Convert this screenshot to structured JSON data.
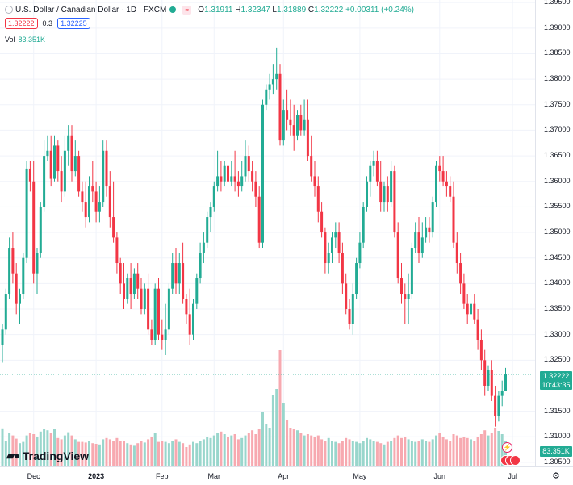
{
  "header": {
    "symbol": "U.S. Dollar / Canadian Dollar · 1D · FXCM",
    "open_label": "O",
    "open": "1.31911",
    "high_label": "H",
    "high": "1.32347",
    "low_label": "L",
    "low": "1.31889",
    "close_label": "C",
    "close": "1.32222",
    "change": "+0.00311 (+0.24%)"
  },
  "bidask": {
    "sell": "1.32222",
    "spread": "0.3",
    "buy": "1.32225"
  },
  "volume": {
    "label": "Vol",
    "value": "83.351K"
  },
  "last_price_tag": {
    "price": "1.32222",
    "countdown": "10:43:35"
  },
  "volume_tag": "83.351K",
  "logo_text": "TradingView",
  "colors": {
    "up": "#22ab94",
    "down": "#f23645",
    "up_vol": "#99d6cc",
    "down_vol": "#f7a9b0"
  },
  "chart_data": {
    "type": "candlestick",
    "title": "U.S. Dollar / Canadian Dollar · 1D · FXCM",
    "ylim": [
      1.3042,
      1.3955
    ],
    "y_ticks": [
      "1.39500",
      "1.39000",
      "1.38500",
      "1.38000",
      "1.37500",
      "1.37000",
      "1.36500",
      "1.36000",
      "1.35500",
      "1.35000",
      "1.34500",
      "1.34000",
      "1.33500",
      "1.33000",
      "1.32500",
      "1.31500",
      "1.31000",
      "1.30500"
    ],
    "x_ticks": [
      "Dec",
      "2023",
      "Feb",
      "Mar",
      "Apr",
      "May",
      "Jun",
      "Jul"
    ],
    "x_tick_bold": [
      false,
      true,
      false,
      false,
      false,
      false,
      false,
      false
    ],
    "last_price": 1.32222,
    "volume_max": 180,
    "candles": [
      [
        1.328,
        1.332,
        1.3245,
        1.331,
        59
      ],
      [
        1.331,
        1.339,
        1.33,
        1.338,
        40
      ],
      [
        1.338,
        1.349,
        1.337,
        1.347,
        52
      ],
      [
        1.347,
        1.35,
        1.34,
        1.342,
        48
      ],
      [
        1.342,
        1.344,
        1.334,
        1.336,
        43
      ],
      [
        1.336,
        1.339,
        1.332,
        1.338,
        36
      ],
      [
        1.338,
        1.346,
        1.337,
        1.345,
        38
      ],
      [
        1.345,
        1.364,
        1.344,
        1.3625,
        48
      ],
      [
        1.3625,
        1.364,
        1.358,
        1.36,
        52
      ],
      [
        1.36,
        1.364,
        1.34,
        1.342,
        50
      ],
      [
        1.342,
        1.347,
        1.338,
        1.346,
        46
      ],
      [
        1.346,
        1.356,
        1.345,
        1.355,
        54
      ],
      [
        1.355,
        1.368,
        1.354,
        1.365,
        58
      ],
      [
        1.365,
        1.369,
        1.364,
        1.366,
        56
      ],
      [
        1.366,
        1.369,
        1.359,
        1.3605,
        52
      ],
      [
        1.3605,
        1.369,
        1.36,
        1.367,
        58
      ],
      [
        1.367,
        1.368,
        1.36,
        1.362,
        44
      ],
      [
        1.362,
        1.365,
        1.356,
        1.358,
        42
      ],
      [
        1.358,
        1.369,
        1.357,
        1.366,
        48
      ],
      [
        1.366,
        1.371,
        1.363,
        1.369,
        53
      ],
      [
        1.369,
        1.371,
        1.36,
        1.362,
        48
      ],
      [
        1.362,
        1.368,
        1.361,
        1.365,
        42
      ],
      [
        1.365,
        1.366,
        1.357,
        1.358,
        38
      ],
      [
        1.358,
        1.36,
        1.354,
        1.356,
        38
      ],
      [
        1.356,
        1.36,
        1.351,
        1.353,
        37
      ],
      [
        1.353,
        1.361,
        1.352,
        1.359,
        40
      ],
      [
        1.359,
        1.364,
        1.356,
        1.358,
        36
      ],
      [
        1.358,
        1.36,
        1.352,
        1.354,
        35
      ],
      [
        1.354,
        1.359,
        1.352,
        1.356,
        34
      ],
      [
        1.356,
        1.368,
        1.355,
        1.366,
        42
      ],
      [
        1.366,
        1.368,
        1.357,
        1.359,
        44
      ],
      [
        1.359,
        1.362,
        1.351,
        1.353,
        42
      ],
      [
        1.353,
        1.36,
        1.348,
        1.349,
        40
      ],
      [
        1.349,
        1.35,
        1.342,
        1.344,
        44
      ],
      [
        1.344,
        1.345,
        1.338,
        1.34,
        40
      ],
      [
        1.34,
        1.344,
        1.335,
        1.337,
        40
      ],
      [
        1.337,
        1.342,
        1.336,
        1.341,
        36
      ],
      [
        1.341,
        1.344,
        1.335,
        1.338,
        34
      ],
      [
        1.338,
        1.343,
        1.337,
        1.342,
        32
      ],
      [
        1.342,
        1.344,
        1.337,
        1.339,
        36
      ],
      [
        1.339,
        1.341,
        1.334,
        1.335,
        40
      ],
      [
        1.335,
        1.34,
        1.334,
        1.339,
        37
      ],
      [
        1.339,
        1.342,
        1.33,
        1.331,
        42
      ],
      [
        1.331,
        1.333,
        1.328,
        1.329,
        46
      ],
      [
        1.329,
        1.34,
        1.328,
        1.339,
        52
      ],
      [
        1.339,
        1.341,
        1.329,
        1.33,
        38
      ],
      [
        1.33,
        1.333,
        1.327,
        1.329,
        40
      ],
      [
        1.329,
        1.336,
        1.326,
        1.331,
        38
      ],
      [
        1.331,
        1.34,
        1.33,
        1.339,
        36
      ],
      [
        1.339,
        1.346,
        1.338,
        1.344,
        40
      ],
      [
        1.344,
        1.347,
        1.338,
        1.34,
        42
      ],
      [
        1.34,
        1.346,
        1.338,
        1.344,
        38
      ],
      [
        1.344,
        1.348,
        1.336,
        1.337,
        36
      ],
      [
        1.337,
        1.338,
        1.332,
        1.334,
        30
      ],
      [
        1.334,
        1.339,
        1.328,
        1.33,
        34
      ],
      [
        1.33,
        1.337,
        1.329,
        1.336,
        38
      ],
      [
        1.336,
        1.342,
        1.335,
        1.341,
        36
      ],
      [
        1.341,
        1.348,
        1.34,
        1.346,
        40
      ],
      [
        1.346,
        1.35,
        1.344,
        1.348,
        42
      ],
      [
        1.348,
        1.354,
        1.347,
        1.353,
        46
      ],
      [
        1.353,
        1.356,
        1.35,
        1.355,
        44
      ],
      [
        1.355,
        1.36,
        1.354,
        1.359,
        48
      ],
      [
        1.359,
        1.366,
        1.358,
        1.361,
        52
      ],
      [
        1.361,
        1.364,
        1.358,
        1.36,
        54
      ],
      [
        1.36,
        1.364,
        1.359,
        1.363,
        50
      ],
      [
        1.363,
        1.365,
        1.359,
        1.36,
        46
      ],
      [
        1.36,
        1.364,
        1.359,
        1.361,
        48
      ],
      [
        1.361,
        1.366,
        1.358,
        1.36,
        50
      ],
      [
        1.36,
        1.362,
        1.357,
        1.359,
        42
      ],
      [
        1.359,
        1.364,
        1.358,
        1.361,
        44
      ],
      [
        1.361,
        1.368,
        1.36,
        1.365,
        48
      ],
      [
        1.365,
        1.367,
        1.36,
        1.362,
        52
      ],
      [
        1.362,
        1.364,
        1.358,
        1.36,
        56
      ],
      [
        1.36,
        1.362,
        1.355,
        1.357,
        50
      ],
      [
        1.357,
        1.359,
        1.347,
        1.348,
        58
      ],
      [
        1.348,
        1.376,
        1.347,
        1.375,
        85
      ],
      [
        1.375,
        1.379,
        1.374,
        1.378,
        65
      ],
      [
        1.378,
        1.381,
        1.376,
        1.379,
        60
      ],
      [
        1.379,
        1.383,
        1.377,
        1.38,
        110
      ],
      [
        1.38,
        1.3862,
        1.378,
        1.381,
        120
      ],
      [
        1.381,
        1.383,
        1.367,
        1.368,
        180
      ],
      [
        1.368,
        1.376,
        1.367,
        1.374,
        98
      ],
      [
        1.374,
        1.378,
        1.37,
        1.372,
        72
      ],
      [
        1.372,
        1.376,
        1.369,
        1.371,
        60
      ],
      [
        1.371,
        1.375,
        1.366,
        1.369,
        58
      ],
      [
        1.369,
        1.374,
        1.368,
        1.373,
        56
      ],
      [
        1.373,
        1.375,
        1.369,
        1.37,
        52
      ],
      [
        1.37,
        1.376,
        1.369,
        1.372,
        48
      ],
      [
        1.372,
        1.376,
        1.364,
        1.365,
        50
      ],
      [
        1.365,
        1.369,
        1.36,
        1.361,
        48
      ],
      [
        1.361,
        1.364,
        1.357,
        1.359,
        46
      ],
      [
        1.359,
        1.361,
        1.352,
        1.354,
        48
      ],
      [
        1.354,
        1.356,
        1.349,
        1.35,
        42
      ],
      [
        1.35,
        1.351,
        1.342,
        1.344,
        40
      ],
      [
        1.344,
        1.348,
        1.342,
        1.346,
        44
      ],
      [
        1.346,
        1.35,
        1.344,
        1.349,
        40
      ],
      [
        1.349,
        1.352,
        1.347,
        1.35,
        38
      ],
      [
        1.35,
        1.352,
        1.344,
        1.346,
        36
      ],
      [
        1.346,
        1.348,
        1.338,
        1.34,
        40
      ],
      [
        1.34,
        1.342,
        1.334,
        1.335,
        44
      ],
      [
        1.335,
        1.337,
        1.331,
        1.332,
        42
      ],
      [
        1.332,
        1.34,
        1.33,
        1.338,
        40
      ],
      [
        1.338,
        1.345,
        1.337,
        1.344,
        38
      ],
      [
        1.344,
        1.35,
        1.343,
        1.348,
        36
      ],
      [
        1.348,
        1.356,
        1.347,
        1.355,
        40
      ],
      [
        1.355,
        1.361,
        1.354,
        1.36,
        44
      ],
      [
        1.36,
        1.364,
        1.357,
        1.363,
        42
      ],
      [
        1.363,
        1.366,
        1.361,
        1.364,
        40
      ],
      [
        1.364,
        1.366,
        1.359,
        1.36,
        38
      ],
      [
        1.36,
        1.364,
        1.354,
        1.356,
        36
      ],
      [
        1.356,
        1.36,
        1.354,
        1.359,
        34
      ],
      [
        1.359,
        1.361,
        1.354,
        1.356,
        38
      ],
      [
        1.356,
        1.364,
        1.355,
        1.362,
        40
      ],
      [
        1.362,
        1.363,
        1.349,
        1.35,
        44
      ],
      [
        1.35,
        1.352,
        1.34,
        1.341,
        48
      ],
      [
        1.341,
        1.344,
        1.336,
        1.338,
        44
      ],
      [
        1.338,
        1.34,
        1.332,
        1.337,
        46
      ],
      [
        1.337,
        1.342,
        1.332,
        1.338,
        42
      ],
      [
        1.338,
        1.348,
        1.337,
        1.347,
        40
      ],
      [
        1.347,
        1.352,
        1.346,
        1.35,
        38
      ],
      [
        1.35,
        1.353,
        1.344,
        1.346,
        40
      ],
      [
        1.346,
        1.352,
        1.345,
        1.349,
        42
      ],
      [
        1.349,
        1.353,
        1.348,
        1.351,
        40
      ],
      [
        1.351,
        1.353,
        1.348,
        1.35,
        38
      ],
      [
        1.35,
        1.357,
        1.349,
        1.356,
        42
      ],
      [
        1.356,
        1.364,
        1.355,
        1.363,
        48
      ],
      [
        1.363,
        1.365,
        1.36,
        1.362,
        52
      ],
      [
        1.362,
        1.365,
        1.359,
        1.36,
        46
      ],
      [
        1.36,
        1.362,
        1.357,
        1.359,
        42
      ],
      [
        1.359,
        1.361,
        1.356,
        1.357,
        40
      ],
      [
        1.357,
        1.36,
        1.347,
        1.348,
        50
      ],
      [
        1.348,
        1.35,
        1.342,
        1.344,
        48
      ],
      [
        1.344,
        1.346,
        1.338,
        1.34,
        44
      ],
      [
        1.34,
        1.342,
        1.335,
        1.336,
        46
      ],
      [
        1.336,
        1.338,
        1.332,
        1.334,
        44
      ],
      [
        1.334,
        1.338,
        1.331,
        1.336,
        42
      ],
      [
        1.336,
        1.338,
        1.332,
        1.333,
        40
      ],
      [
        1.333,
        1.335,
        1.327,
        1.329,
        46
      ],
      [
        1.329,
        1.331,
        1.323,
        1.325,
        50
      ],
      [
        1.325,
        1.327,
        1.318,
        1.32,
        56
      ],
      [
        1.32,
        1.324,
        1.319,
        1.323,
        48
      ],
      [
        1.323,
        1.325,
        1.317,
        1.318,
        52
      ],
      [
        1.318,
        1.32,
        1.312,
        1.314,
        60
      ],
      [
        1.314,
        1.319,
        1.313,
        1.318,
        55
      ],
      [
        1.318,
        1.321,
        1.316,
        1.319,
        50
      ],
      [
        1.319,
        1.3235,
        1.3189,
        1.3222,
        40
      ]
    ]
  }
}
